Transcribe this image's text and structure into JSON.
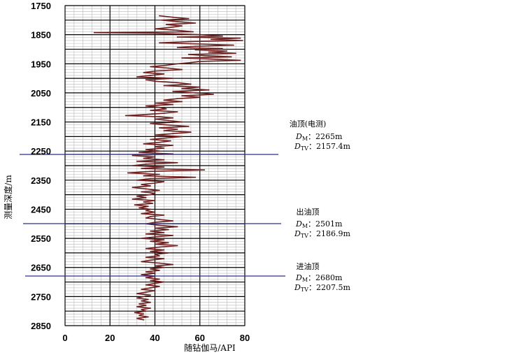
{
  "chart_data": {
    "type": "line",
    "xlabel": "随钻伽马/API",
    "ylabel": "测量深度/m",
    "xlim": [
      0,
      80
    ],
    "ylim": [
      1750,
      2850
    ],
    "y_inverted": true,
    "x_ticks": [
      "0",
      "20",
      "40",
      "60",
      "80"
    ],
    "y_ticks": [
      "1750",
      "1850",
      "1950",
      "2050",
      "2150",
      "2250",
      "2350",
      "2450",
      "2550",
      "2650",
      "2750",
      "2850"
    ],
    "grid": true,
    "series": [
      {
        "color": "#6b1f1f",
        "points": [
          [
            1785,
            42
          ],
          [
            1790,
            48
          ],
          [
            1795,
            55
          ],
          [
            1800,
            43
          ],
          [
            1805,
            50
          ],
          [
            1810,
            58
          ],
          [
            1815,
            45
          ],
          [
            1820,
            52
          ],
          [
            1825,
            47
          ],
          [
            1830,
            40
          ],
          [
            1835,
            50
          ],
          [
            1840,
            57
          ],
          [
            1843,
            13
          ],
          [
            1845,
            40
          ],
          [
            1848,
            52
          ],
          [
            1850,
            60
          ],
          [
            1855,
            70
          ],
          [
            1858,
            50
          ],
          [
            1862,
            78
          ],
          [
            1866,
            65
          ],
          [
            1870,
            79
          ],
          [
            1874,
            55
          ],
          [
            1878,
            42
          ],
          [
            1882,
            60
          ],
          [
            1886,
            75
          ],
          [
            1890,
            58
          ],
          [
            1894,
            50
          ],
          [
            1898,
            70
          ],
          [
            1902,
            58
          ],
          [
            1906,
            72
          ],
          [
            1910,
            64
          ],
          [
            1914,
            76
          ],
          [
            1918,
            55
          ],
          [
            1922,
            62
          ],
          [
            1926,
            74
          ],
          [
            1930,
            52
          ],
          [
            1934,
            65
          ],
          [
            1938,
            78
          ],
          [
            1942,
            60
          ],
          [
            1946,
            56
          ],
          [
            1950,
            50
          ],
          [
            1955,
            45
          ],
          [
            1960,
            38
          ],
          [
            1965,
            46
          ],
          [
            1970,
            52
          ],
          [
            1975,
            40
          ],
          [
            1980,
            35
          ],
          [
            1985,
            44
          ],
          [
            1990,
            38
          ],
          [
            1995,
            32
          ],
          [
            2000,
            48
          ],
          [
            2005,
            36
          ],
          [
            2010,
            40
          ],
          [
            2015,
            50
          ],
          [
            2020,
            56
          ],
          [
            2025,
            44
          ],
          [
            2030,
            60
          ],
          [
            2035,
            52
          ],
          [
            2040,
            64
          ],
          [
            2045,
            48
          ],
          [
            2050,
            58
          ],
          [
            2055,
            66
          ],
          [
            2060,
            52
          ],
          [
            2065,
            60
          ],
          [
            2070,
            50
          ],
          [
            2075,
            44
          ],
          [
            2080,
            52
          ],
          [
            2085,
            40
          ],
          [
            2090,
            48
          ],
          [
            2095,
            36
          ],
          [
            2100,
            42
          ],
          [
            2105,
            45
          ],
          [
            2110,
            38
          ],
          [
            2115,
            50
          ],
          [
            2120,
            44
          ],
          [
            2125,
            35
          ],
          [
            2128,
            27
          ],
          [
            2132,
            42
          ],
          [
            2136,
            48
          ],
          [
            2140,
            40
          ],
          [
            2145,
            46
          ],
          [
            2150,
            52
          ],
          [
            2155,
            38
          ],
          [
            2160,
            45
          ],
          [
            2165,
            55
          ],
          [
            2170,
            42
          ],
          [
            2175,
            50
          ],
          [
            2180,
            44
          ],
          [
            2185,
            56
          ],
          [
            2190,
            48
          ],
          [
            2195,
            40
          ],
          [
            2200,
            52
          ],
          [
            2205,
            45
          ],
          [
            2210,
            38
          ],
          [
            2215,
            47
          ],
          [
            2220,
            42
          ],
          [
            2225,
            35
          ],
          [
            2230,
            48
          ],
          [
            2235,
            40
          ],
          [
            2240,
            44
          ],
          [
            2245,
            36
          ],
          [
            2250,
            42
          ],
          [
            2255,
            33
          ],
          [
            2260,
            48
          ],
          [
            2265,
            30
          ],
          [
            2270,
            40
          ],
          [
            2275,
            35
          ],
          [
            2280,
            44
          ],
          [
            2285,
            32
          ],
          [
            2290,
            50
          ],
          [
            2295,
            36
          ],
          [
            2300,
            30
          ],
          [
            2305,
            44
          ],
          [
            2310,
            34
          ],
          [
            2315,
            62
          ],
          [
            2320,
            38
          ],
          [
            2325,
            28
          ],
          [
            2330,
            42
          ],
          [
            2335,
            35
          ],
          [
            2340,
            58
          ],
          [
            2345,
            38
          ],
          [
            2350,
            32
          ],
          [
            2355,
            44
          ],
          [
            2360,
            40
          ],
          [
            2365,
            34
          ],
          [
            2370,
            38
          ],
          [
            2375,
            30
          ],
          [
            2380,
            36
          ],
          [
            2385,
            42
          ],
          [
            2390,
            34
          ],
          [
            2395,
            40
          ],
          [
            2400,
            38
          ],
          [
            2405,
            32
          ],
          [
            2410,
            36
          ],
          [
            2415,
            30
          ],
          [
            2420,
            40
          ],
          [
            2425,
            35
          ],
          [
            2430,
            39
          ],
          [
            2435,
            31
          ],
          [
            2440,
            37
          ],
          [
            2445,
            33
          ],
          [
            2450,
            38
          ],
          [
            2455,
            36
          ],
          [
            2460,
            40
          ],
          [
            2465,
            34
          ],
          [
            2470,
            44
          ],
          [
            2475,
            38
          ],
          [
            2480,
            36
          ],
          [
            2485,
            42
          ],
          [
            2490,
            48
          ],
          [
            2495,
            40
          ],
          [
            2500,
            36
          ],
          [
            2505,
            42
          ],
          [
            2510,
            50
          ],
          [
            2515,
            40
          ],
          [
            2520,
            46
          ],
          [
            2525,
            38
          ],
          [
            2530,
            44
          ],
          [
            2535,
            36
          ],
          [
            2540,
            48
          ],
          [
            2545,
            40
          ],
          [
            2550,
            34
          ],
          [
            2555,
            44
          ],
          [
            2560,
            38
          ],
          [
            2565,
            46
          ],
          [
            2570,
            40
          ],
          [
            2575,
            50
          ],
          [
            2580,
            42
          ],
          [
            2585,
            36
          ],
          [
            2590,
            44
          ],
          [
            2595,
            38
          ],
          [
            2600,
            46
          ],
          [
            2605,
            40
          ],
          [
            2610,
            42
          ],
          [
            2615,
            36
          ],
          [
            2620,
            44
          ],
          [
            2625,
            38
          ],
          [
            2630,
            34
          ],
          [
            2635,
            42
          ],
          [
            2640,
            48
          ],
          [
            2645,
            40
          ],
          [
            2650,
            44
          ],
          [
            2655,
            38
          ],
          [
            2660,
            42
          ],
          [
            2665,
            36
          ],
          [
            2670,
            40
          ],
          [
            2675,
            34
          ],
          [
            2680,
            40
          ],
          [
            2685,
            36
          ],
          [
            2690,
            42
          ],
          [
            2695,
            38
          ],
          [
            2700,
            44
          ],
          [
            2705,
            40
          ],
          [
            2710,
            36
          ],
          [
            2715,
            42
          ],
          [
            2720,
            38
          ],
          [
            2725,
            34
          ],
          [
            2730,
            40
          ],
          [
            2735,
            36
          ],
          [
            2740,
            32
          ],
          [
            2745,
            38
          ],
          [
            2750,
            35
          ],
          [
            2755,
            32
          ],
          [
            2760,
            37
          ],
          [
            2765,
            34
          ],
          [
            2770,
            38
          ],
          [
            2775,
            33
          ],
          [
            2780,
            36
          ],
          [
            2785,
            32
          ],
          [
            2790,
            38
          ],
          [
            2795,
            34
          ],
          [
            2800,
            36
          ],
          [
            2805,
            31
          ],
          [
            2810,
            35
          ],
          [
            2815,
            33
          ],
          [
            2820,
            37
          ],
          [
            2825,
            32
          ],
          [
            2830,
            35
          ]
        ]
      }
    ],
    "markers": [
      {
        "label": "油顶(电测)",
        "dm_label": "D",
        "dm_sub": "M",
        "dm_value": "2265m",
        "dtv_label": "D",
        "dtv_sub": "TV",
        "dtv_value": "2157.4m",
        "depth": 2265
      },
      {
        "label": "出油顶",
        "dm_label": "D",
        "dm_sub": "M",
        "dm_value": "2501m",
        "dtv_label": "D",
        "dtv_sub": "TV",
        "dtv_value": "2186.9m",
        "depth": 2501
      },
      {
        "label": "进油顶",
        "dm_label": "D",
        "dm_sub": "M",
        "dm_value": "2680m",
        "dtv_label": "D",
        "dtv_sub": "TV",
        "dtv_value": "2207.5m",
        "depth": 2680
      }
    ],
    "marker_line_color": "#2e2e8c",
    "grid_major_color": "#000000",
    "grid_minor_color": "#b8b8b8"
  }
}
